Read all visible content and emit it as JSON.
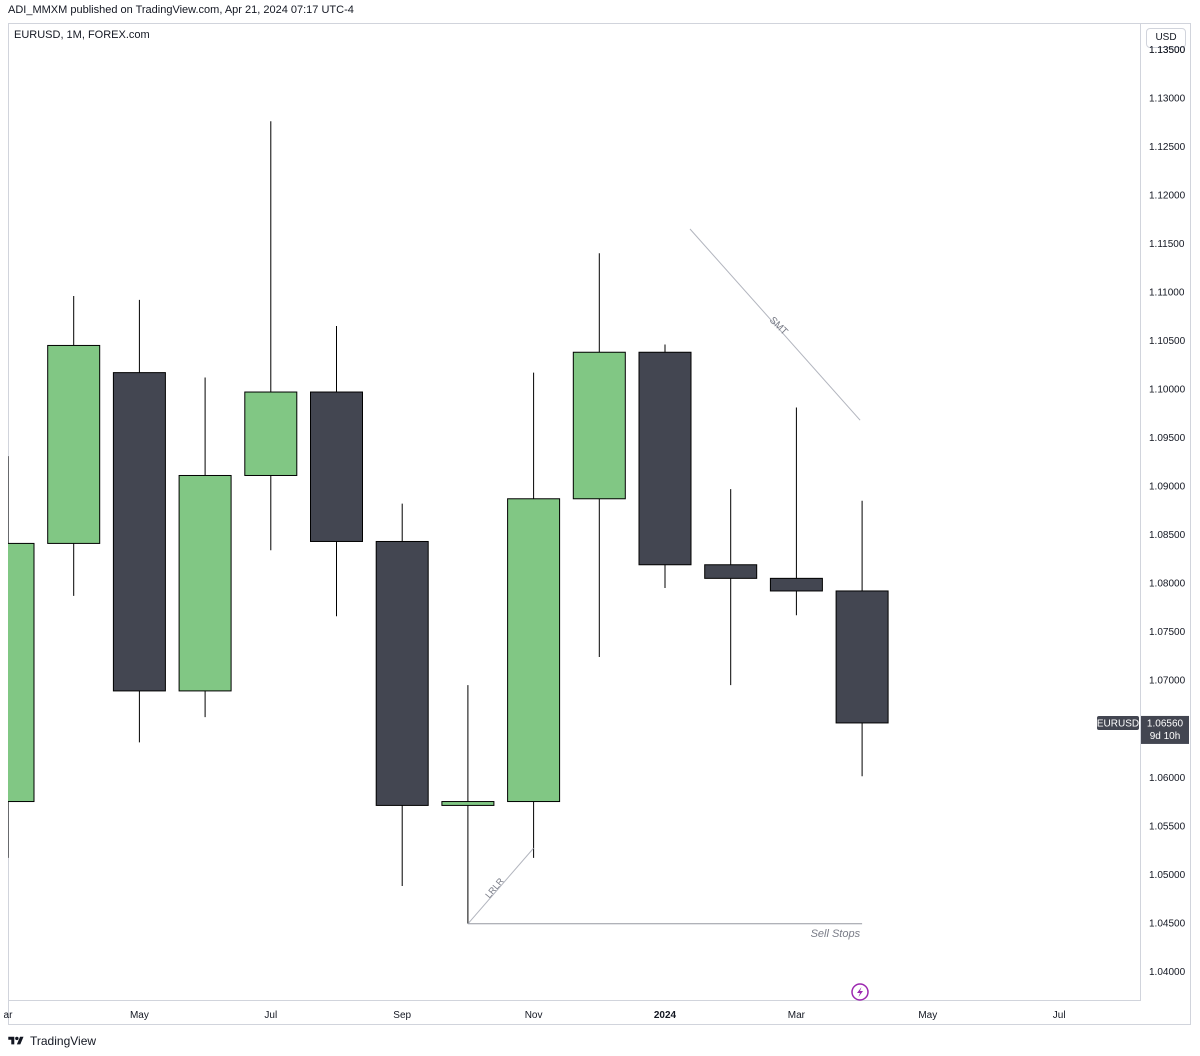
{
  "header": {
    "publish_line": "ADI_MMXM published on TradingView.com, Apr 21, 2024 07:17 UTC-4",
    "symbol_line": "EURUSD, 1M, FOREX.com"
  },
  "price_axis": {
    "currency": "USD",
    "ticks": [
      "1.04000",
      "1.04500",
      "1.05000",
      "1.05500",
      "1.06000",
      "1.06500",
      "1.07000",
      "1.07500",
      "1.08000",
      "1.08500",
      "1.09000",
      "1.09500",
      "1.10000",
      "1.10500",
      "1.11000",
      "1.11500",
      "1.12000",
      "1.12500",
      "1.13000",
      "1.13500"
    ],
    "tick_values": [
      1.04,
      1.045,
      1.05,
      1.055,
      1.06,
      1.065,
      1.07,
      1.075,
      1.08,
      1.085,
      1.09,
      1.095,
      1.1,
      1.105,
      1.11,
      1.115,
      1.12,
      1.125,
      1.13,
      1.135
    ],
    "last_price_symbol": "EURUSD",
    "last_price": "1.06560",
    "countdown": "9d 10h"
  },
  "time_axis": {
    "labels": [
      {
        "text": "ar",
        "idx": 0.0,
        "year": false
      },
      {
        "text": "May",
        "idx": 2,
        "year": false
      },
      {
        "text": "Jul",
        "idx": 4,
        "year": false
      },
      {
        "text": "Sep",
        "idx": 6,
        "year": false
      },
      {
        "text": "Nov",
        "idx": 8,
        "year": false
      },
      {
        "text": "2024",
        "idx": 10,
        "year": true
      },
      {
        "text": "Mar",
        "idx": 12,
        "year": false
      },
      {
        "text": "May",
        "idx": 14,
        "year": false
      },
      {
        "text": "Jul",
        "idx": 16,
        "year": false
      }
    ]
  },
  "annotations": {
    "smt": "SMT",
    "lrlr": "LRLR",
    "sell_stops": "Sell Stops"
  },
  "footer": {
    "brand": "TradingView"
  },
  "colors": {
    "bull": "#81c784",
    "bear": "#434651",
    "wick": "#000000",
    "drawing": "#b2b5be"
  },
  "chart_data": {
    "type": "candlestick",
    "symbol": "EURUSD",
    "timeframe": "1M",
    "ylim": [
      1.037,
      1.136
    ],
    "categories": [
      "Mar 2023",
      "Apr 2023",
      "May 2023",
      "Jun 2023",
      "Jul 2023",
      "Aug 2023",
      "Sep 2023",
      "Oct 2023",
      "Nov 2023",
      "Dec 2023",
      "Jan 2024",
      "Feb 2024",
      "Mar 2024",
      "Apr 2024"
    ],
    "candles": [
      {
        "date": "Mar 2023",
        "open": 1.0575,
        "high": 1.0931,
        "low": 1.0517,
        "close": 1.0841
      },
      {
        "date": "Apr 2023",
        "open": 1.0841,
        "high": 1.1096,
        "low": 1.0787,
        "close": 1.1045
      },
      {
        "date": "May 2023",
        "open": 1.1017,
        "high": 1.1092,
        "low": 1.0636,
        "close": 1.0689
      },
      {
        "date": "Jun 2023",
        "open": 1.0689,
        "high": 1.1012,
        "low": 1.0662,
        "close": 1.0911
      },
      {
        "date": "Jul 2023",
        "open": 1.0911,
        "high": 1.1276,
        "low": 1.0834,
        "close": 1.0997
      },
      {
        "date": "Aug 2023",
        "open": 1.0997,
        "high": 1.1065,
        "low": 1.0766,
        "close": 1.0843
      },
      {
        "date": "Sep 2023",
        "open": 1.0843,
        "high": 1.0882,
        "low": 1.0488,
        "close": 1.0571
      },
      {
        "date": "Oct 2023",
        "open": 1.0571,
        "high": 1.0695,
        "low": 1.0449,
        "close": 1.0575
      },
      {
        "date": "Nov 2023",
        "open": 1.0575,
        "high": 1.1017,
        "low": 1.0517,
        "close": 1.0887
      },
      {
        "date": "Dec 2023",
        "open": 1.0887,
        "high": 1.114,
        "low": 1.0724,
        "close": 1.1038
      },
      {
        "date": "Jan 2024",
        "open": 1.1038,
        "high": 1.1046,
        "low": 1.0795,
        "close": 1.0819
      },
      {
        "date": "Feb 2024",
        "open": 1.0819,
        "high": 1.0897,
        "low": 1.0695,
        "close": 1.0805
      },
      {
        "date": "Mar 2024",
        "open": 1.0805,
        "high": 1.0981,
        "low": 1.0767,
        "close": 1.0792
      },
      {
        "date": "Apr 2024",
        "open": 1.0792,
        "high": 1.0885,
        "low": 1.0601,
        "close": 1.0656
      }
    ],
    "drawings": [
      {
        "type": "trendline",
        "label": "SMT",
        "from": {
          "date": "Jan 2024",
          "price": 1.1165
        },
        "to": {
          "date": "Apr 2024",
          "price": 1.0968
        }
      },
      {
        "type": "trendline",
        "label": "LRLR",
        "from": {
          "date": "Oct 2023",
          "price": 1.0449
        },
        "to": {
          "date": "Nov 2023",
          "price": 1.0527
        }
      },
      {
        "type": "hline",
        "label": "Sell Stops",
        "price": 1.0449,
        "from": "Oct 2023",
        "to": "Apr 2024"
      }
    ]
  }
}
